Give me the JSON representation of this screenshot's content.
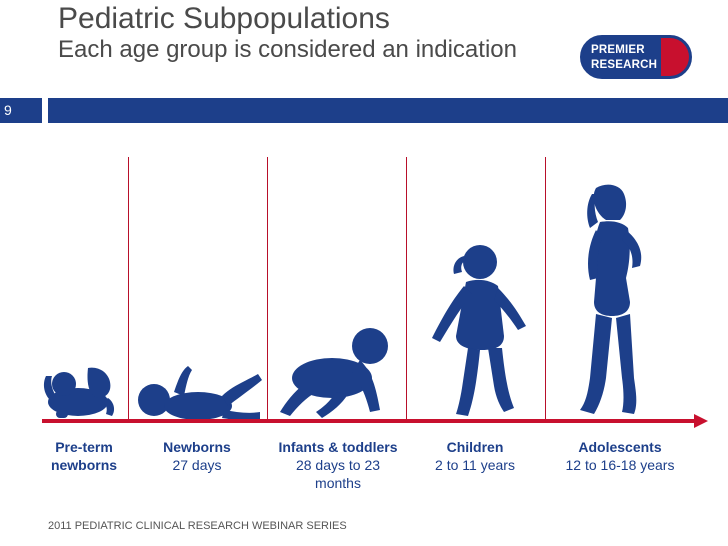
{
  "title": {
    "main": "Pediatric Subpopulations",
    "sub": "Each age group is considered an indication"
  },
  "slide_number": "9",
  "logo": {
    "line1": "PREMIER",
    "line2": "RESEARCH"
  },
  "age_groups": [
    {
      "name": "Pre-term newborns",
      "range": ""
    },
    {
      "name": "Newborns",
      "range": "27 days"
    },
    {
      "name": "Infants & toddlers",
      "range": "28 days to 23 months"
    },
    {
      "name": "Children",
      "range": "2 to 11 years"
    },
    {
      "name": "Adolescents",
      "range": "12 to 16-18 years"
    }
  ],
  "footer": "2011 PEDIATRIC CLINICAL RESEARCH WEBINAR SERIES",
  "colors": {
    "navy": "#1d3f8a",
    "red": "#c8102e",
    "title_gray": "#4a4a4a"
  },
  "icons": [
    "preterm-baby-silhouette-icon",
    "newborn-silhouette-icon",
    "crawling-infant-silhouette-icon",
    "child-silhouette-icon",
    "adolescent-silhouette-icon"
  ]
}
